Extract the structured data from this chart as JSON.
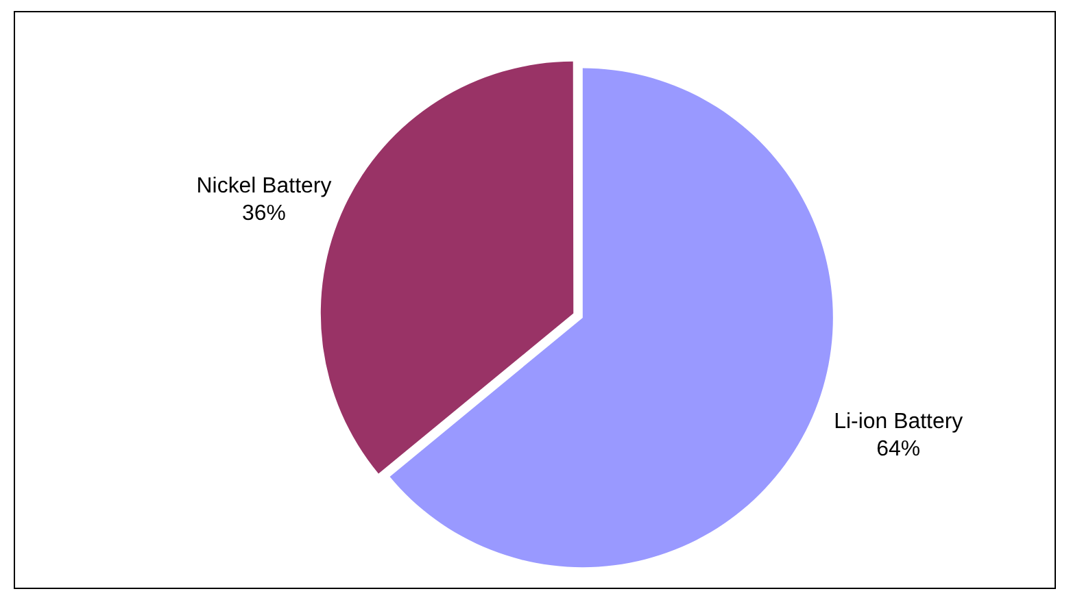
{
  "chart_data": {
    "type": "pie",
    "categories": [
      "Li-ion Battery",
      "Nickel Battery"
    ],
    "values": [
      64,
      36
    ],
    "colors": [
      "#9999ff",
      "#993366"
    ],
    "value_labels": [
      "64%",
      "36%"
    ]
  }
}
